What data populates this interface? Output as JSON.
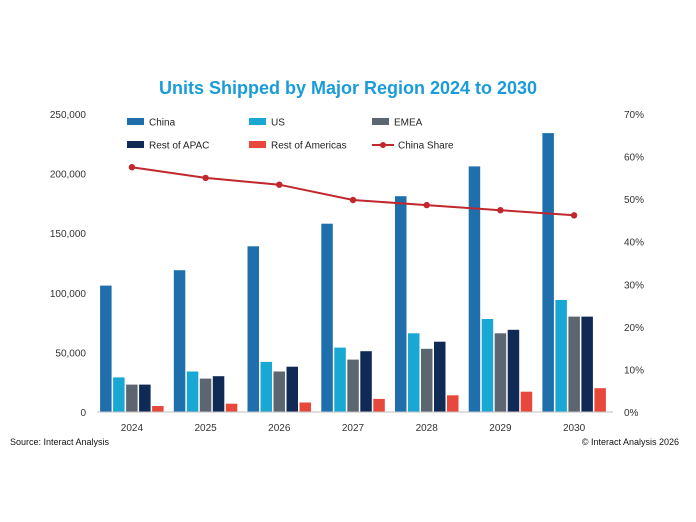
{
  "chart_data": {
    "type": "bar",
    "title": "Units Shipped by Major Region 2024 to 2030",
    "categories": [
      "2024",
      "2025",
      "2026",
      "2027",
      "2028",
      "2029",
      "2030"
    ],
    "series": [
      {
        "name": "China",
        "color": "#1f6fad",
        "values": [
          106000,
          119000,
          139000,
          158000,
          181000,
          206000,
          234000
        ]
      },
      {
        "name": "US",
        "color": "#19a8d4",
        "values": [
          29000,
          34000,
          42000,
          54000,
          66000,
          78000,
          94000
        ]
      },
      {
        "name": "EMEA",
        "color": "#5c6670",
        "values": [
          23000,
          28000,
          34000,
          44000,
          53000,
          66000,
          80000
        ]
      },
      {
        "name": "Rest of APAC",
        "color": "#0f2a54",
        "values": [
          23000,
          30000,
          38000,
          51000,
          59000,
          69000,
          80000
        ]
      },
      {
        "name": "Rest of Americas",
        "color": "#e8483b",
        "values": [
          5000,
          7000,
          8000,
          11000,
          14000,
          17000,
          20000
        ]
      }
    ],
    "line_series": {
      "name": "China Share",
      "color": "#c0282d",
      "axis": "right",
      "values": [
        57.5,
        55.0,
        53.4,
        49.8,
        48.6,
        47.4,
        46.2
      ]
    },
    "y_left": {
      "ylim": [
        0,
        250000
      ],
      "ticks": [
        "0",
        "50,000",
        "100,000",
        "150,000",
        "200,000",
        "250,000"
      ]
    },
    "y_right": {
      "ylim": [
        0,
        70
      ],
      "ticks": [
        "0%",
        "10%",
        "20%",
        "30%",
        "40%",
        "50%",
        "60%",
        "70%"
      ]
    },
    "grid": false,
    "legend_placement": "top-left"
  },
  "footer": {
    "source": "Source: Interact Analysis",
    "copyright": "© Interact Analysis 2026"
  }
}
